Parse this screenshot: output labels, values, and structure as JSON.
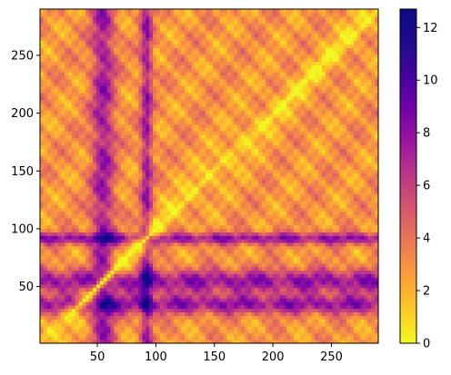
{
  "chart_data": {
    "type": "heatmap",
    "title": "",
    "xlabel": "",
    "ylabel": "",
    "colormap": "plasma_r",
    "x_range": [
      1,
      290
    ],
    "y_range": [
      1,
      290
    ],
    "x_ticks": [
      50,
      100,
      150,
      200,
      250
    ],
    "y_ticks": [
      50,
      100,
      150,
      200,
      250
    ],
    "color_range": [
      0,
      12.7
    ],
    "colorbar_ticks": [
      0,
      2,
      4,
      6,
      8,
      10,
      12
    ],
    "diagonal_value": 0,
    "high_value_bands": {
      "rows": [
        {
          "center": 92,
          "width": 5
        },
        {
          "center": 55,
          "width": 10
        },
        {
          "center": 35,
          "width": 8
        }
      ],
      "columns": [
        {
          "center": 92,
          "width": 5
        },
        {
          "center": 55,
          "width": 10
        }
      ]
    },
    "grid": false,
    "legend": "colorbar-right"
  }
}
